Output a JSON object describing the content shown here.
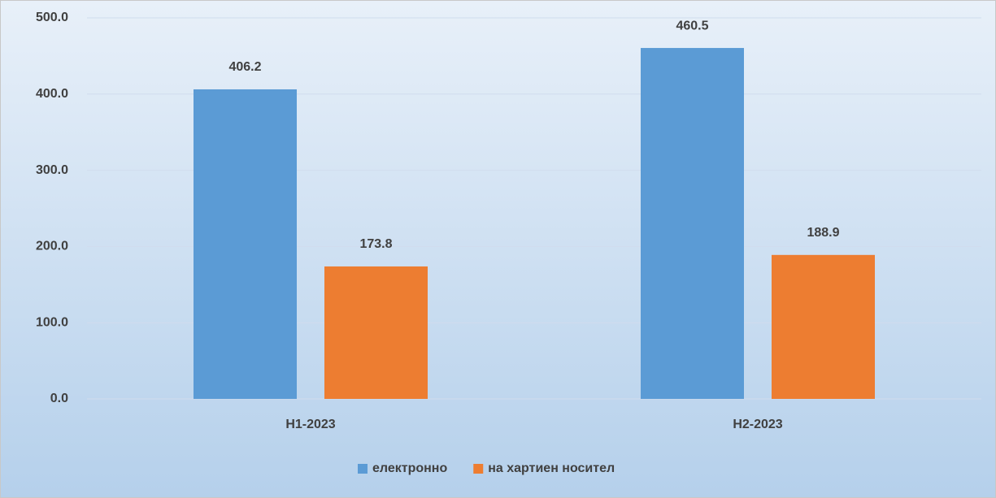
{
  "chart_data": {
    "type": "bar",
    "categories": [
      "H1-2023",
      "H2-2023"
    ],
    "series": [
      {
        "name": "електронно",
        "color": "#5b9bd5",
        "values": [
          406.2,
          460.5
        ]
      },
      {
        "name": "на хартиен носител",
        "color": "#ed7d31",
        "values": [
          173.8,
          188.9
        ]
      }
    ],
    "ylim": [
      0,
      500
    ],
    "yticks": [
      {
        "value": 0,
        "label": "0.0"
      },
      {
        "value": 100,
        "label": "100.0"
      },
      {
        "value": 200,
        "label": "200.0"
      },
      {
        "value": 300,
        "label": "300.0"
      },
      {
        "value": 400,
        "label": "400.0"
      },
      {
        "value": 500,
        "label": "500.0"
      }
    ],
    "grid": true,
    "legend": "bottom"
  }
}
